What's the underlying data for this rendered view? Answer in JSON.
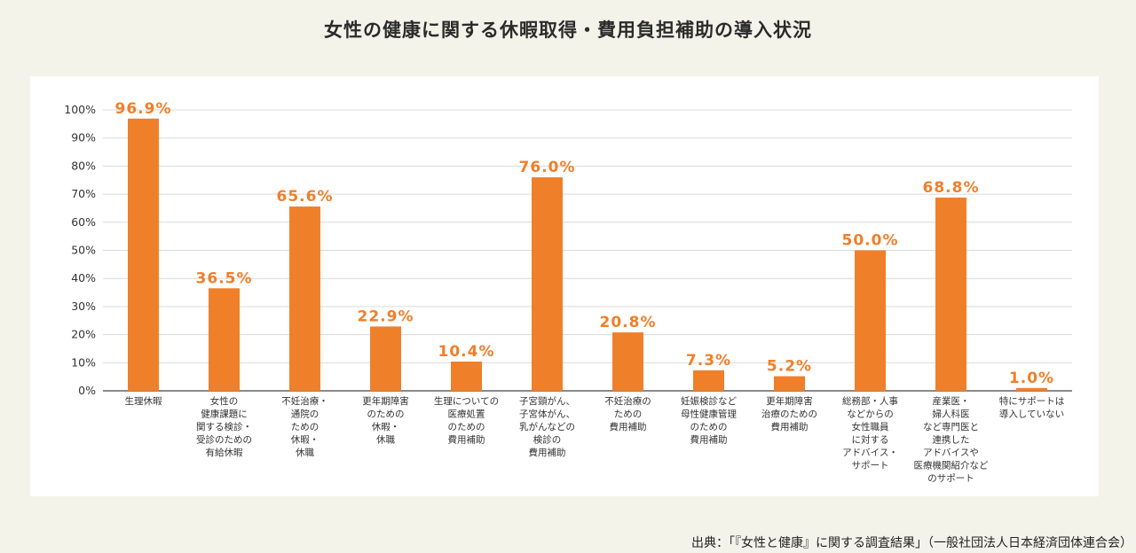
{
  "title": "女性の健康に関する休暇取得・費用負担補助の導入状況",
  "source": "出典：「『女性と健康』に関する調査結果」（一般社団法人日本経済団体連合会）",
  "colors": {
    "bar": "#f07f2a",
    "label": "#f07f2a",
    "background": "#f4f3e9"
  },
  "chart_data": {
    "type": "bar",
    "title": "女性の健康に関する休暇取得・費用負担補助の導入状況",
    "ylim": [
      0,
      100
    ],
    "yticks": [
      "0%",
      "10%",
      "20%",
      "30%",
      "40%",
      "50%",
      "60%",
      "70%",
      "80%",
      "90%",
      "100%"
    ],
    "grid": true,
    "categories": [
      [
        "生理休暇"
      ],
      [
        "女性の",
        "健康課題に",
        "関する検診・",
        "受診のための",
        "有給休暇"
      ],
      [
        "不妊治療・",
        "通院の",
        "ための",
        "休暇・",
        "休職"
      ],
      [
        "更年期障害",
        "のための",
        "休暇・",
        "休職"
      ],
      [
        "生理についての",
        "医療処置",
        "のための",
        "費用補助"
      ],
      [
        "子宮頸がん、",
        "子宮体がん、",
        "乳がんなどの",
        "検診の",
        "費用補助"
      ],
      [
        "不妊治療の",
        "ための",
        "費用補助"
      ],
      [
        "妊娠検診など",
        "母性健康管理",
        "のための",
        "費用補助"
      ],
      [
        "更年期障害",
        "治療のための",
        "費用補助"
      ],
      [
        "総務部・人事",
        "などからの",
        "女性職員",
        "に対する",
        "アドバイス・",
        "サポート"
      ],
      [
        "産業医・",
        "婦人科医",
        "など専門医と",
        "連携した",
        "アドバイスや",
        "医療機関紹介など",
        "のサポート"
      ],
      [
        "特にサポートは",
        "導入していない"
      ]
    ],
    "values": [
      96.9,
      36.5,
      65.6,
      22.9,
      10.4,
      76.0,
      20.8,
      7.3,
      5.2,
      50.0,
      68.8,
      1.0
    ],
    "value_labels": [
      "96.9%",
      "36.5%",
      "65.6%",
      "22.9%",
      "10.4%",
      "76.0%",
      "20.8%",
      "7.3%",
      "5.2%",
      "50.0%",
      "68.8%",
      "1.0%"
    ]
  }
}
